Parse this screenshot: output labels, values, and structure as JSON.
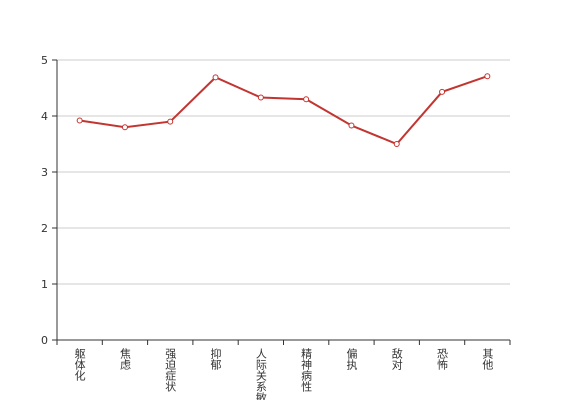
{
  "chart_data": {
    "type": "line",
    "categories": [
      "躯体化",
      "焦虑",
      "强迫症状",
      "抑郁",
      "人际关系敏感",
      "精神病性",
      "偏执",
      "敌对",
      "恐怖",
      "其他"
    ],
    "values": [
      3.92,
      3.8,
      3.9,
      4.69,
      4.33,
      4.3,
      3.83,
      3.5,
      4.43,
      4.71
    ],
    "color": "#c23531",
    "ylim": [
      0,
      5
    ],
    "yticks": [
      0,
      1,
      2,
      3,
      4,
      5
    ],
    "grid": true
  }
}
